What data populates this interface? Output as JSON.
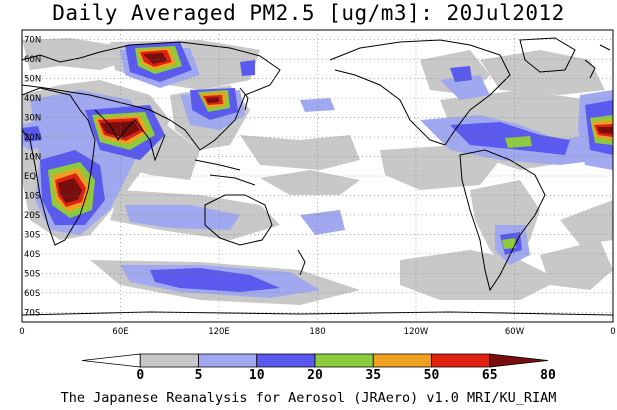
{
  "title": "Daily Averaged PM2.5 [ug/m3]: 20Jul2012",
  "footer": "The Japanese Reanalysis for Aerosol (JRAero) v1.0 MRI/KU_RIAM",
  "lat_labels": [
    "70N",
    "60N",
    "50N",
    "40N",
    "30N",
    "20N",
    "10N",
    "EQ",
    "10S",
    "20S",
    "30S",
    "40S",
    "50S",
    "60S",
    "70S"
  ],
  "lon_labels": [
    "0",
    "60E",
    "120E",
    "180",
    "120W",
    "60W",
    "0"
  ],
  "colorbar": {
    "ticks": [
      "0",
      "5",
      "10",
      "20",
      "35",
      "50",
      "65",
      "80"
    ],
    "colors": [
      "#ffffff",
      "#c8c8c8",
      "#a0a8f0",
      "#5a5aee",
      "#8ccc3c",
      "#f0a020",
      "#e02010",
      "#7a0e0e"
    ]
  },
  "colors": {
    "land_outline": "#000000",
    "grid": "#777777"
  }
}
